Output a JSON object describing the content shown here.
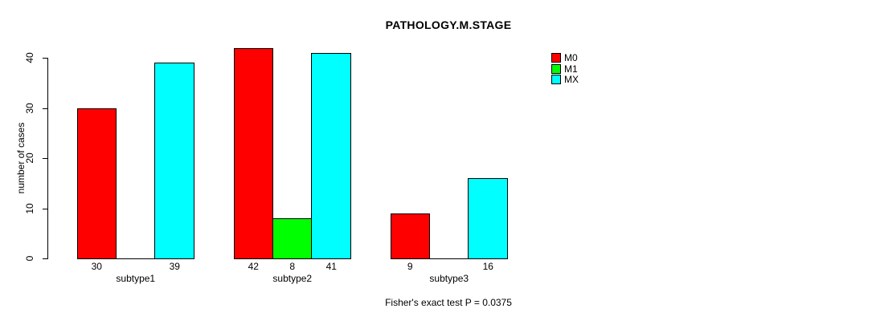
{
  "chart_data": {
    "type": "bar",
    "title": "PATHOLOGY.M.STAGE",
    "ylabel": "number of cases",
    "xlabel": "",
    "categories": [
      "subtype1",
      "subtype2",
      "subtype3"
    ],
    "series": [
      {
        "name": "M0",
        "color": "#FF0000",
        "values": [
          30,
          42,
          9
        ]
      },
      {
        "name": "M1",
        "color": "#00FF00",
        "values": [
          0,
          8,
          0
        ]
      },
      {
        "name": "MX",
        "color": "#00FFFF",
        "values": [
          39,
          41,
          16
        ]
      }
    ],
    "bar_value_labels": [
      [
        "30",
        "",
        "39"
      ],
      [
        "42",
        "8",
        "41"
      ],
      [
        "9",
        "",
        "16"
      ]
    ],
    "yticks": [
      0,
      10,
      20,
      30,
      40
    ],
    "ylim": [
      0,
      40
    ],
    "grid": false,
    "legend_position": "right",
    "legend_entries": [
      "M0",
      "M1",
      "MX"
    ],
    "annotation": "Fisher's exact test P = 0.0375",
    "background_color": "#FFFFFF",
    "axis_color": "#000000"
  }
}
